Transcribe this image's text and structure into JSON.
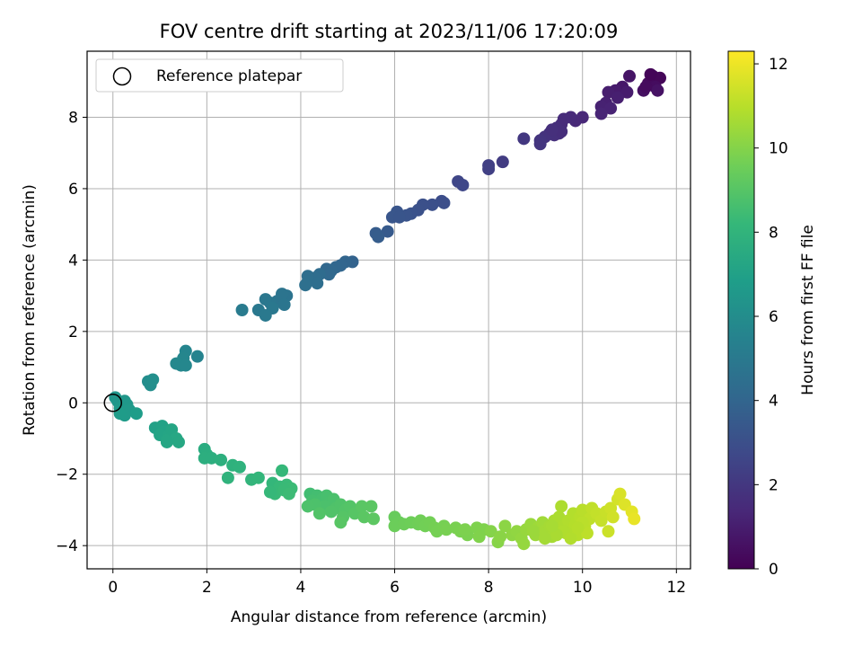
{
  "chart_data": {
    "type": "scatter",
    "title": "FOV centre drift starting at 2023/11/06 17:20:09",
    "xlabel": "Angular distance from reference (arcmin)",
    "ylabel": "Rotation from reference (arcmin)",
    "xlim": [
      -0.55,
      12.3
    ],
    "ylim": [
      -4.65,
      9.85
    ],
    "xticks": [
      0,
      2,
      4,
      6,
      8,
      10,
      12
    ],
    "yticks": [
      -4,
      -2,
      0,
      2,
      4,
      6,
      8
    ],
    "grid": true,
    "legend": {
      "placement": "top-left",
      "entries": [
        "Reference platepar"
      ]
    },
    "reference_point": {
      "x": 0,
      "y": 0
    },
    "colorbar": {
      "label": "Hours from first FF file",
      "range": [
        0,
        12.3
      ],
      "ticks": [
        0,
        2,
        4,
        6,
        8,
        10,
        12
      ],
      "colormap": "viridis",
      "colormap_stops": [
        "#440154",
        "#482878",
        "#3e4989",
        "#31688e",
        "#26828e",
        "#1f9e89",
        "#35b779",
        "#6ece58",
        "#b5de2b",
        "#fde725"
      ]
    },
    "points": [
      {
        "x": 11.5,
        "y": 9.15,
        "c": 0.1
      },
      {
        "x": 11.65,
        "y": 9.1,
        "c": 0.2
      },
      {
        "x": 11.4,
        "y": 8.95,
        "c": 0.3
      },
      {
        "x": 11.55,
        "y": 8.85,
        "c": 0.4
      },
      {
        "x": 11.3,
        "y": 8.75,
        "c": 0.5
      },
      {
        "x": 11.6,
        "y": 8.75,
        "c": 0.6
      },
      {
        "x": 11.45,
        "y": 9.2,
        "c": 0.15
      },
      {
        "x": 11.35,
        "y": 8.85,
        "c": 0.35
      },
      {
        "x": 11.0,
        "y": 9.15,
        "c": 0.7
      },
      {
        "x": 10.85,
        "y": 8.85,
        "c": 0.8
      },
      {
        "x": 10.7,
        "y": 8.75,
        "c": 0.9
      },
      {
        "x": 10.95,
        "y": 8.7,
        "c": 0.95
      },
      {
        "x": 10.55,
        "y": 8.7,
        "c": 1.0
      },
      {
        "x": 10.75,
        "y": 8.55,
        "c": 1.05
      },
      {
        "x": 10.5,
        "y": 8.4,
        "c": 1.1
      },
      {
        "x": 10.4,
        "y": 8.3,
        "c": 1.15
      },
      {
        "x": 10.6,
        "y": 8.25,
        "c": 1.2
      },
      {
        "x": 10.4,
        "y": 8.1,
        "c": 1.25
      },
      {
        "x": 10.0,
        "y": 8.0,
        "c": 1.35
      },
      {
        "x": 9.85,
        "y": 7.9,
        "c": 1.4
      },
      {
        "x": 9.75,
        "y": 8.0,
        "c": 1.45
      },
      {
        "x": 9.6,
        "y": 7.95,
        "c": 1.5
      },
      {
        "x": 9.55,
        "y": 7.8,
        "c": 1.55
      },
      {
        "x": 9.45,
        "y": 7.7,
        "c": 1.6
      },
      {
        "x": 9.5,
        "y": 7.55,
        "c": 1.65
      },
      {
        "x": 9.4,
        "y": 7.5,
        "c": 1.7
      },
      {
        "x": 9.3,
        "y": 7.55,
        "c": 1.75
      },
      {
        "x": 9.2,
        "y": 7.45,
        "c": 1.8
      },
      {
        "x": 9.1,
        "y": 7.35,
        "c": 1.85
      },
      {
        "x": 9.1,
        "y": 7.25,
        "c": 1.9
      },
      {
        "x": 9.55,
        "y": 7.6,
        "c": 1.62
      },
      {
        "x": 9.35,
        "y": 7.65,
        "c": 1.68
      },
      {
        "x": 8.75,
        "y": 7.4,
        "c": 2.0
      },
      {
        "x": 8.3,
        "y": 6.75,
        "c": 2.2
      },
      {
        "x": 8.0,
        "y": 6.65,
        "c": 2.3
      },
      {
        "x": 8.0,
        "y": 6.55,
        "c": 2.35
      },
      {
        "x": 7.35,
        "y": 6.2,
        "c": 2.6
      },
      {
        "x": 7.45,
        "y": 6.1,
        "c": 2.65
      },
      {
        "x": 7.0,
        "y": 5.65,
        "c": 2.9
      },
      {
        "x": 7.05,
        "y": 5.6,
        "c": 2.95
      },
      {
        "x": 6.8,
        "y": 5.55,
        "c": 3.0
      },
      {
        "x": 6.6,
        "y": 5.55,
        "c": 3.05
      },
      {
        "x": 6.5,
        "y": 5.4,
        "c": 3.1
      },
      {
        "x": 6.35,
        "y": 5.3,
        "c": 3.15
      },
      {
        "x": 6.25,
        "y": 5.25,
        "c": 3.2
      },
      {
        "x": 6.05,
        "y": 5.35,
        "c": 3.25
      },
      {
        "x": 5.95,
        "y": 5.2,
        "c": 3.3
      },
      {
        "x": 6.1,
        "y": 5.2,
        "c": 3.28
      },
      {
        "x": 5.85,
        "y": 4.8,
        "c": 3.5
      },
      {
        "x": 5.6,
        "y": 4.75,
        "c": 3.55
      },
      {
        "x": 5.65,
        "y": 4.65,
        "c": 3.6
      },
      {
        "x": 5.1,
        "y": 3.95,
        "c": 3.9
      },
      {
        "x": 4.95,
        "y": 3.95,
        "c": 3.95
      },
      {
        "x": 4.85,
        "y": 3.85,
        "c": 4.0
      },
      {
        "x": 4.75,
        "y": 3.8,
        "c": 4.05
      },
      {
        "x": 4.65,
        "y": 3.7,
        "c": 4.1
      },
      {
        "x": 4.55,
        "y": 3.75,
        "c": 4.12
      },
      {
        "x": 4.6,
        "y": 3.6,
        "c": 4.15
      },
      {
        "x": 4.4,
        "y": 3.6,
        "c": 4.3
      },
      {
        "x": 4.3,
        "y": 3.5,
        "c": 4.35
      },
      {
        "x": 4.15,
        "y": 3.55,
        "c": 4.4
      },
      {
        "x": 4.15,
        "y": 3.4,
        "c": 4.45
      },
      {
        "x": 4.1,
        "y": 3.3,
        "c": 4.5
      },
      {
        "x": 4.35,
        "y": 3.35,
        "c": 4.42
      },
      {
        "x": 3.7,
        "y": 3.0,
        "c": 4.7
      },
      {
        "x": 3.6,
        "y": 3.05,
        "c": 4.72
      },
      {
        "x": 3.5,
        "y": 2.85,
        "c": 4.75
      },
      {
        "x": 3.65,
        "y": 2.75,
        "c": 4.8
      },
      {
        "x": 3.35,
        "y": 2.8,
        "c": 4.85
      },
      {
        "x": 3.25,
        "y": 2.9,
        "c": 4.9
      },
      {
        "x": 3.4,
        "y": 2.65,
        "c": 4.92
      },
      {
        "x": 3.1,
        "y": 2.6,
        "c": 4.95
      },
      {
        "x": 3.25,
        "y": 2.45,
        "c": 5.0
      },
      {
        "x": 2.75,
        "y": 2.6,
        "c": 5.1
      },
      {
        "x": 1.8,
        "y": 1.3,
        "c": 5.5
      },
      {
        "x": 1.55,
        "y": 1.45,
        "c": 5.6
      },
      {
        "x": 1.5,
        "y": 1.25,
        "c": 5.65
      },
      {
        "x": 1.45,
        "y": 1.05,
        "c": 5.7
      },
      {
        "x": 1.35,
        "y": 1.1,
        "c": 5.75
      },
      {
        "x": 1.55,
        "y": 1.05,
        "c": 5.72
      },
      {
        "x": 0.75,
        "y": 0.6,
        "c": 6.0
      },
      {
        "x": 0.8,
        "y": 0.5,
        "c": 6.05
      },
      {
        "x": 0.85,
        "y": 0.65,
        "c": 6.1
      },
      {
        "x": 0.05,
        "y": 0.15,
        "c": 6.4
      },
      {
        "x": 0.1,
        "y": 0.05,
        "c": 6.45
      },
      {
        "x": 0.25,
        "y": 0.05,
        "c": 6.5
      },
      {
        "x": 0.3,
        "y": -0.05,
        "c": 6.55
      },
      {
        "x": 0.15,
        "y": -0.15,
        "c": 6.6
      },
      {
        "x": 0.35,
        "y": -0.2,
        "c": 6.65
      },
      {
        "x": 0.25,
        "y": -0.35,
        "c": 6.7
      },
      {
        "x": 0.15,
        "y": -0.3,
        "c": 6.75
      },
      {
        "x": 0.5,
        "y": -0.3,
        "c": 6.8
      },
      {
        "x": 0.9,
        "y": -0.7,
        "c": 7.0
      },
      {
        "x": 1.05,
        "y": -0.65,
        "c": 7.05
      },
      {
        "x": 1.1,
        "y": -0.8,
        "c": 7.1
      },
      {
        "x": 1.0,
        "y": -0.9,
        "c": 7.15
      },
      {
        "x": 1.2,
        "y": -0.9,
        "c": 7.2
      },
      {
        "x": 1.15,
        "y": -1.05,
        "c": 7.25
      },
      {
        "x": 1.25,
        "y": -0.75,
        "c": 7.22
      },
      {
        "x": 1.35,
        "y": -1.0,
        "c": 7.3
      },
      {
        "x": 1.4,
        "y": -1.1,
        "c": 7.35
      },
      {
        "x": 1.15,
        "y": -1.1,
        "c": 7.28
      },
      {
        "x": 1.95,
        "y": -1.3,
        "c": 7.6
      },
      {
        "x": 2.0,
        "y": -1.45,
        "c": 7.65
      },
      {
        "x": 1.95,
        "y": -1.55,
        "c": 7.7
      },
      {
        "x": 2.1,
        "y": -1.55,
        "c": 7.72
      },
      {
        "x": 2.3,
        "y": -1.6,
        "c": 7.75
      },
      {
        "x": 2.55,
        "y": -1.75,
        "c": 7.85
      },
      {
        "x": 2.7,
        "y": -1.8,
        "c": 7.9
      },
      {
        "x": 2.45,
        "y": -2.1,
        "c": 7.95
      },
      {
        "x": 2.95,
        "y": -2.15,
        "c": 8.05
      },
      {
        "x": 3.1,
        "y": -2.1,
        "c": 8.1
      },
      {
        "x": 3.4,
        "y": -2.25,
        "c": 8.15
      },
      {
        "x": 3.6,
        "y": -1.9,
        "c": 8.2
      },
      {
        "x": 3.55,
        "y": -2.35,
        "c": 8.25
      },
      {
        "x": 3.7,
        "y": -2.3,
        "c": 8.3
      },
      {
        "x": 3.8,
        "y": -2.4,
        "c": 8.35
      },
      {
        "x": 3.45,
        "y": -2.55,
        "c": 8.28
      },
      {
        "x": 3.65,
        "y": -2.45,
        "c": 8.32
      },
      {
        "x": 3.35,
        "y": -2.5,
        "c": 8.22
      },
      {
        "x": 3.75,
        "y": -2.55,
        "c": 8.38
      },
      {
        "x": 4.2,
        "y": -2.55,
        "c": 8.5
      },
      {
        "x": 4.35,
        "y": -2.6,
        "c": 8.55
      },
      {
        "x": 4.25,
        "y": -2.75,
        "c": 8.6
      },
      {
        "x": 4.45,
        "y": -2.7,
        "c": 8.62
      },
      {
        "x": 4.55,
        "y": -2.6,
        "c": 8.65
      },
      {
        "x": 4.6,
        "y": -2.8,
        "c": 8.7
      },
      {
        "x": 4.7,
        "y": -2.7,
        "c": 8.72
      },
      {
        "x": 4.5,
        "y": -2.9,
        "c": 8.75
      },
      {
        "x": 4.3,
        "y": -2.85,
        "c": 8.78
      },
      {
        "x": 4.15,
        "y": -2.9,
        "c": 8.8
      },
      {
        "x": 4.75,
        "y": -2.95,
        "c": 8.82
      },
      {
        "x": 4.85,
        "y": -2.85,
        "c": 8.85
      },
      {
        "x": 4.65,
        "y": -3.05,
        "c": 8.88
      },
      {
        "x": 4.4,
        "y": -3.1,
        "c": 8.9
      },
      {
        "x": 4.95,
        "y": -3.0,
        "c": 8.92
      },
      {
        "x": 5.05,
        "y": -2.9,
        "c": 8.95
      },
      {
        "x": 4.9,
        "y": -3.2,
        "c": 9.0
      },
      {
        "x": 5.15,
        "y": -3.1,
        "c": 9.02
      },
      {
        "x": 4.85,
        "y": -3.35,
        "c": 9.05
      },
      {
        "x": 5.3,
        "y": -2.9,
        "c": 9.08
      },
      {
        "x": 5.35,
        "y": -3.2,
        "c": 9.1
      },
      {
        "x": 5.5,
        "y": -2.9,
        "c": 9.12
      },
      {
        "x": 5.55,
        "y": -3.25,
        "c": 9.15
      },
      {
        "x": 6.0,
        "y": -3.2,
        "c": 9.4
      },
      {
        "x": 6.1,
        "y": -3.35,
        "c": 9.45
      },
      {
        "x": 6.0,
        "y": -3.45,
        "c": 9.5
      },
      {
        "x": 6.2,
        "y": -3.4,
        "c": 9.52
      },
      {
        "x": 6.35,
        "y": -3.35,
        "c": 9.55
      },
      {
        "x": 6.5,
        "y": -3.4,
        "c": 9.58
      },
      {
        "x": 6.55,
        "y": -3.3,
        "c": 9.6
      },
      {
        "x": 6.65,
        "y": -3.45,
        "c": 9.62
      },
      {
        "x": 6.75,
        "y": -3.35,
        "c": 9.65
      },
      {
        "x": 6.85,
        "y": -3.5,
        "c": 9.68
      },
      {
        "x": 6.9,
        "y": -3.6,
        "c": 9.7
      },
      {
        "x": 7.05,
        "y": -3.45,
        "c": 9.72
      },
      {
        "x": 7.1,
        "y": -3.55,
        "c": 9.75
      },
      {
        "x": 7.3,
        "y": -3.5,
        "c": 9.78
      },
      {
        "x": 7.4,
        "y": -3.6,
        "c": 9.8
      },
      {
        "x": 7.55,
        "y": -3.7,
        "c": 9.82
      },
      {
        "x": 7.5,
        "y": -3.55,
        "c": 9.85
      },
      {
        "x": 7.75,
        "y": -3.5,
        "c": 9.88
      },
      {
        "x": 7.9,
        "y": -3.55,
        "c": 9.9
      },
      {
        "x": 7.8,
        "y": -3.75,
        "c": 9.92
      },
      {
        "x": 8.05,
        "y": -3.6,
        "c": 10.0
      },
      {
        "x": 8.2,
        "y": -3.9,
        "c": 10.05
      },
      {
        "x": 8.25,
        "y": -3.75,
        "c": 10.1
      },
      {
        "x": 8.35,
        "y": -3.45,
        "c": 10.15
      },
      {
        "x": 8.5,
        "y": -3.7,
        "c": 10.2
      },
      {
        "x": 8.6,
        "y": -3.6,
        "c": 10.25
      },
      {
        "x": 8.7,
        "y": -3.8,
        "c": 10.3
      },
      {
        "x": 8.75,
        "y": -3.95,
        "c": 10.32
      },
      {
        "x": 8.8,
        "y": -3.55,
        "c": 10.35
      },
      {
        "x": 8.9,
        "y": -3.4,
        "c": 10.4
      },
      {
        "x": 9.0,
        "y": -3.7,
        "c": 10.45
      },
      {
        "x": 9.05,
        "y": -3.5,
        "c": 10.5
      },
      {
        "x": 9.15,
        "y": -3.35,
        "c": 10.55
      },
      {
        "x": 9.2,
        "y": -3.6,
        "c": 10.6
      },
      {
        "x": 9.3,
        "y": -3.45,
        "c": 10.62
      },
      {
        "x": 9.35,
        "y": -3.75,
        "c": 10.65
      },
      {
        "x": 9.4,
        "y": -3.3,
        "c": 10.7
      },
      {
        "x": 9.45,
        "y": -3.55,
        "c": 10.72
      },
      {
        "x": 9.5,
        "y": -3.2,
        "c": 10.75
      },
      {
        "x": 9.55,
        "y": -2.9,
        "c": 10.78
      },
      {
        "x": 9.6,
        "y": -3.45,
        "c": 10.8
      },
      {
        "x": 9.65,
        "y": -3.65,
        "c": 10.82
      },
      {
        "x": 9.7,
        "y": -3.3,
        "c": 10.85
      },
      {
        "x": 9.75,
        "y": -3.55,
        "c": 10.88
      },
      {
        "x": 9.8,
        "y": -3.1,
        "c": 10.9
      },
      {
        "x": 9.85,
        "y": -3.4,
        "c": 10.92
      },
      {
        "x": 9.9,
        "y": -3.7,
        "c": 10.95
      },
      {
        "x": 9.95,
        "y": -3.2,
        "c": 10.98
      },
      {
        "x": 10.0,
        "y": -3.0,
        "c": 11.0
      },
      {
        "x": 10.05,
        "y": -3.45,
        "c": 11.05
      },
      {
        "x": 10.1,
        "y": -3.65,
        "c": 11.08
      },
      {
        "x": 10.15,
        "y": -3.25,
        "c": 11.1
      },
      {
        "x": 10.2,
        "y": -2.95,
        "c": 11.15
      },
      {
        "x": 10.3,
        "y": -3.1,
        "c": 11.2
      },
      {
        "x": 10.4,
        "y": -3.3,
        "c": 11.25
      },
      {
        "x": 10.5,
        "y": -3.05,
        "c": 11.3
      },
      {
        "x": 10.55,
        "y": -3.6,
        "c": 11.35
      },
      {
        "x": 10.6,
        "y": -2.95,
        "c": 11.4
      },
      {
        "x": 10.65,
        "y": -3.2,
        "c": 11.45
      },
      {
        "x": 10.75,
        "y": -2.7,
        "c": 11.5
      },
      {
        "x": 10.8,
        "y": -2.55,
        "c": 11.6
      },
      {
        "x": 10.9,
        "y": -2.85,
        "c": 11.7
      },
      {
        "x": 11.05,
        "y": -3.05,
        "c": 11.8
      },
      {
        "x": 11.1,
        "y": -3.25,
        "c": 11.9
      },
      {
        "x": 9.6,
        "y": -3.6,
        "c": 10.84
      },
      {
        "x": 9.75,
        "y": -3.8,
        "c": 10.87
      },
      {
        "x": 9.45,
        "y": -3.7,
        "c": 10.71
      },
      {
        "x": 9.35,
        "y": -3.45,
        "c": 10.66
      },
      {
        "x": 10.0,
        "y": -3.35,
        "c": 11.02
      },
      {
        "x": 9.9,
        "y": -3.5,
        "c": 10.96
      },
      {
        "x": 9.2,
        "y": -3.8,
        "c": 10.61
      },
      {
        "x": 8.95,
        "y": -3.6,
        "c": 10.44
      }
    ]
  }
}
